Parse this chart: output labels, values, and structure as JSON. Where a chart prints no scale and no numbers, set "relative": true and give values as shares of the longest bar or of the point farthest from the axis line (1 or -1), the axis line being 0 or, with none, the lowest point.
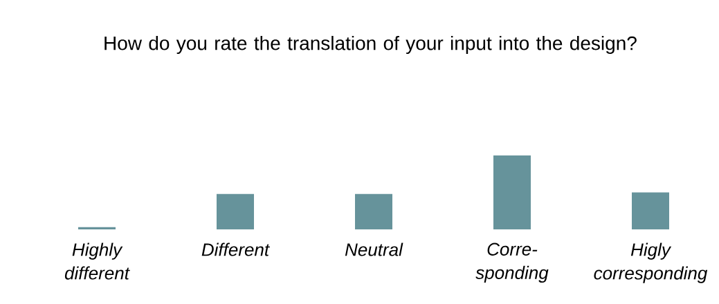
{
  "chart_data": {
    "type": "bar",
    "title": "How do you rate the translation of your input into the design?",
    "relative": true,
    "categories": [
      "Highly different",
      "Different",
      "Neutral",
      "Corre-sponding",
      "Higly corresponding"
    ],
    "values": [
      0.03,
      0.48,
      0.48,
      1,
      0.5
    ],
    "color": "#66939b"
  }
}
